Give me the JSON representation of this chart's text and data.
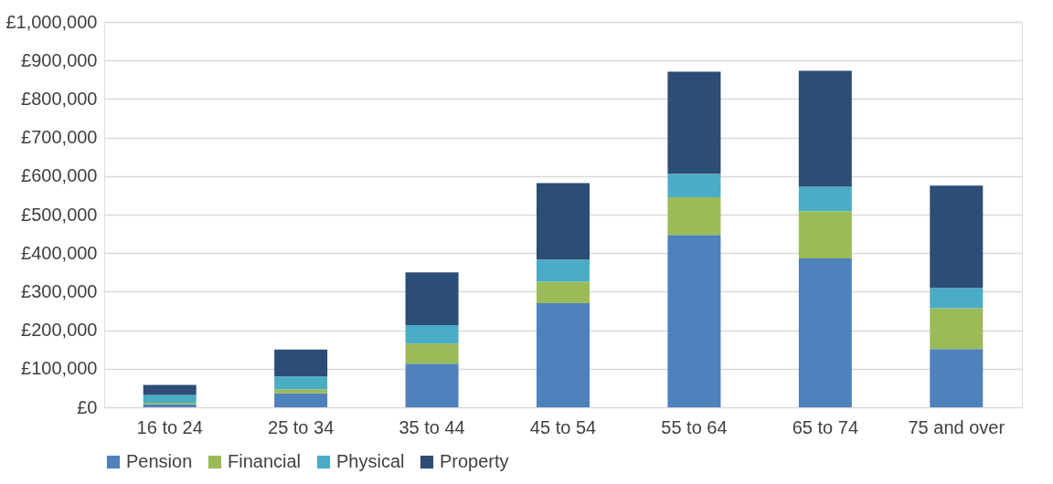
{
  "chart_data": {
    "type": "bar",
    "stacked": true,
    "categories": [
      "16 to 24",
      "25 to 34",
      "35 to 44",
      "45 to 54",
      "55 to 64",
      "65 to 74",
      "75 and over"
    ],
    "series": [
      {
        "name": "Pension",
        "color": "#4f81bd",
        "values": [
          8000,
          36000,
          113000,
          270000,
          447000,
          386000,
          151000
        ]
      },
      {
        "name": "Financial",
        "color": "#9bbb59",
        "values": [
          4000,
          11000,
          52000,
          56000,
          98000,
          123000,
          106000
        ]
      },
      {
        "name": "Physical",
        "color": "#4bacc6",
        "values": [
          20000,
          33000,
          48000,
          57000,
          61000,
          63000,
          53000
        ]
      },
      {
        "name": "Property",
        "color": "#2c4d75",
        "values": [
          26000,
          70000,
          137000,
          199000,
          265000,
          301000,
          265000
        ]
      }
    ],
    "ylim": [
      0,
      1000000
    ],
    "yticks": [
      {
        "value": 0,
        "label": "£0"
      },
      {
        "value": 100000,
        "label": "£100,000"
      },
      {
        "value": 200000,
        "label": "£200,000"
      },
      {
        "value": 300000,
        "label": "£300,000"
      },
      {
        "value": 400000,
        "label": "£400,000"
      },
      {
        "value": 500000,
        "label": "£500,000"
      },
      {
        "value": 600000,
        "label": "£600,000"
      },
      {
        "value": 700000,
        "label": "£700,000"
      },
      {
        "value": 800000,
        "label": "£800,000"
      },
      {
        "value": 900000,
        "label": "£900,000"
      },
      {
        "value": 1000000,
        "label": "£1,000,000"
      }
    ],
    "grid": "y",
    "legend": "bottom"
  }
}
